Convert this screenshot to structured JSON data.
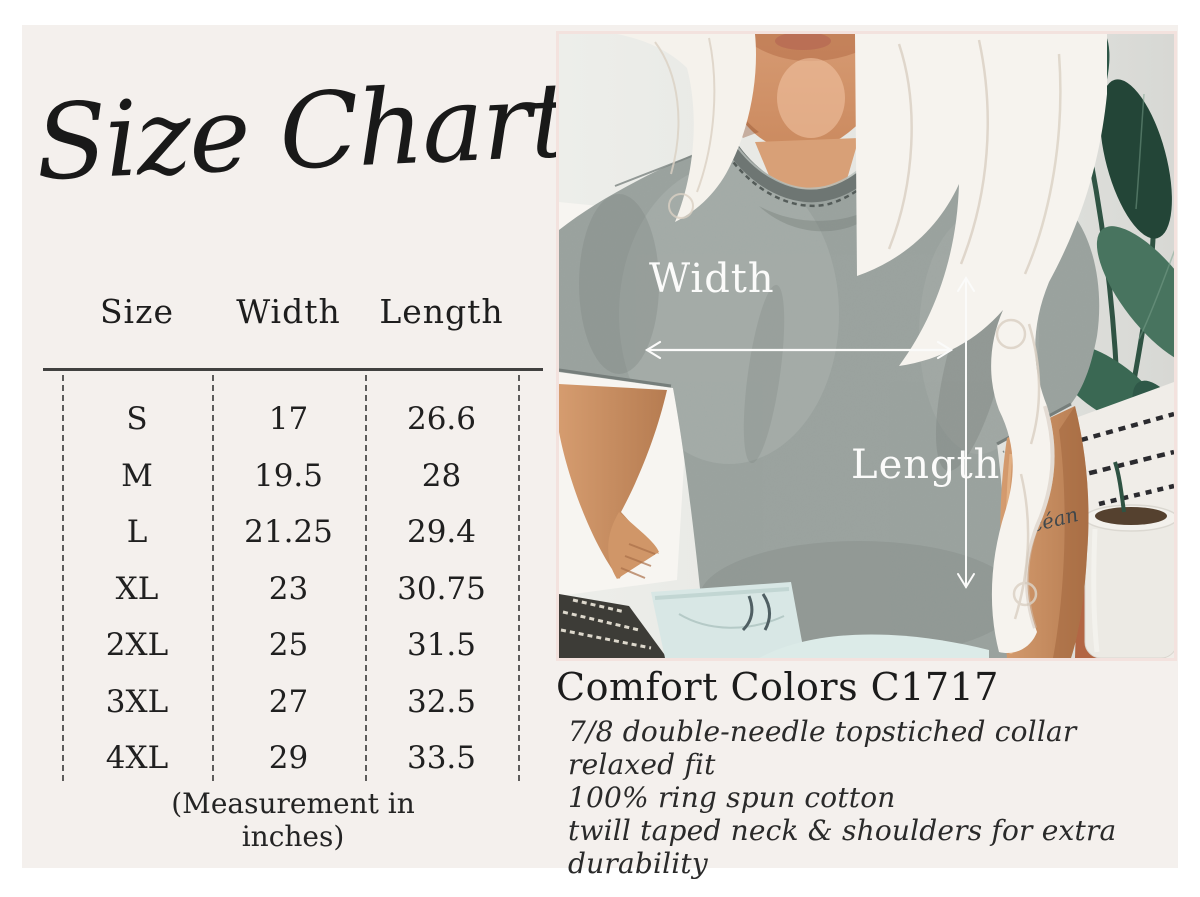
{
  "header": {
    "title": "Size Chart"
  },
  "size_table": {
    "columns": [
      "Size",
      "Width",
      "Length"
    ],
    "rows": [
      [
        "S",
        "17",
        "26.6"
      ],
      [
        "M",
        "19.5",
        "28"
      ],
      [
        "L",
        "21.25",
        "29.4"
      ],
      [
        "XL",
        "23",
        "30.75"
      ],
      [
        "2XL",
        "25",
        "31.5"
      ],
      [
        "3XL",
        "27",
        "32.5"
      ],
      [
        "4XL",
        "29",
        "33.5"
      ]
    ],
    "note": "(Measurement in inches)"
  },
  "photo": {
    "width_label": "Width",
    "length_label": "Length",
    "tattoo": "Océan"
  },
  "product": {
    "name": "Comfort Colors C1717",
    "features": [
      "7/8 double-needle topstiched collar",
      "relaxed fit",
      "100% ring spun cotton",
      "twill taped neck & shoulders for extra durability"
    ]
  },
  "colors": {
    "panel_bg": "#f4f0ed",
    "outer_border": "#ffffff",
    "ink": "#1d1d1d",
    "tee_gray": "#9aa29e",
    "leaf_green": "#2d5546",
    "annotation_white": "#fbfbfa",
    "photo_frame": "#f3e2de"
  }
}
